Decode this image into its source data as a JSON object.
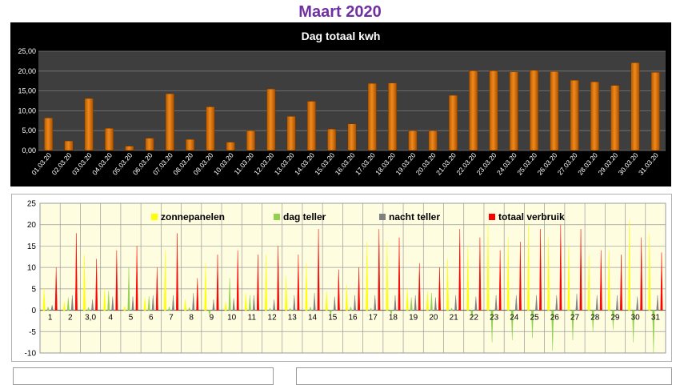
{
  "page": {
    "title": "Maart 2020"
  },
  "colors": {
    "title": "#7030a0",
    "bar": "#f0891c",
    "chart_bg": "#000000",
    "plot_bg": "#3e3e3e",
    "zonnepanelen": "#ffff00",
    "dag_teller": "#92d050",
    "nacht_teller": "#808080",
    "totaal_verbruik": "#ff0000",
    "plot2_bg": "#fffde0"
  },
  "chart_data": [
    {
      "type": "bar",
      "title": "Dag totaal kwh",
      "categories": [
        "01.03.20",
        "02.03.20",
        "03.03.20",
        "04.03.20",
        "05.03.20",
        "06.03.20",
        "07.03.20",
        "08.03.20",
        "09.03.20",
        "10.03.20",
        "11.03.20",
        "12.03.20",
        "13.03.20",
        "14.03.20",
        "15.03.20",
        "16.03.20",
        "17.03.20",
        "18.03.20",
        "19.03.20",
        "20.03.20",
        "21.03.20",
        "22.03.20",
        "23.03.20",
        "24.03.20",
        "25.03.20",
        "26.03.20",
        "27.03.20",
        "28.03.20",
        "29.03.20",
        "30.03.20",
        "31.03.20"
      ],
      "values": [
        8.2,
        2.4,
        13.1,
        5.6,
        1.1,
        3.1,
        14.3,
        2.8,
        11.0,
        2.1,
        5.0,
        15.5,
        8.6,
        12.4,
        5.4,
        6.7,
        16.9,
        17.0,
        5.0,
        5.0,
        13.9,
        20.1,
        20.1,
        19.8,
        20.2,
        19.9,
        17.7,
        17.3,
        16.4,
        22.1,
        19.7
      ],
      "xlabel": "",
      "ylabel": "",
      "ylim": [
        0,
        25
      ],
      "yticks": [
        "0,00",
        "5,00",
        "10,00",
        "15,00",
        "20,00",
        "25,00"
      ],
      "grid": true
    },
    {
      "type": "area",
      "title": "",
      "x": [
        "1",
        "2",
        "3,0",
        "4",
        "5",
        "6",
        "7",
        "8",
        "9",
        "10",
        "11",
        "12",
        "13",
        "14",
        "15",
        "16",
        "17",
        "18",
        "19",
        "20",
        "21",
        "22",
        "23",
        "24",
        "25",
        "26",
        "27",
        "28",
        "29",
        "30",
        "31"
      ],
      "ylim": [
        -10,
        25
      ],
      "yticks": [
        "-10",
        "-5",
        "0",
        "5",
        "10",
        "15",
        "20",
        "25"
      ],
      "legend_position": "top",
      "grid": true,
      "series": [
        {
          "name": "zonnepanelen",
          "values": [
            5,
            2,
            13,
            5,
            1,
            3,
            14,
            2.5,
            11,
            2,
            4,
            13,
            8,
            11,
            4.5,
            6,
            16,
            16,
            5,
            4.5,
            12,
            15,
            20,
            17,
            20,
            17,
            15,
            13,
            14,
            21,
            18
          ]
        },
        {
          "name": "dag teller",
          "values": [
            0.8,
            3,
            0.7,
            4.5,
            10,
            3.3,
            0.8,
            0.7,
            -1.2,
            7.5,
            3.5,
            0.5,
            0.5,
            0.8,
            -1.2,
            0.8,
            0.5,
            -1.2,
            3,
            4,
            0.5,
            -2,
            -7.5,
            -7,
            -6.5,
            -9.5,
            -7,
            -5,
            -4.5,
            -7.5,
            -10
          ]
        },
        {
          "name": "nacht teller",
          "values": [
            1.2,
            3.5,
            2.5,
            3.2,
            3.2,
            3.5,
            3.5,
            4,
            2.5,
            2.8,
            3.5,
            2.5,
            3.5,
            4,
            3.2,
            3.5,
            3.5,
            3.5,
            3.5,
            3,
            3.5,
            3.2,
            3.5,
            3.5,
            3.5,
            3.5,
            3.8,
            3.5,
            3.5,
            3.2,
            3.5
          ]
        },
        {
          "name": "totaal verbruik",
          "values": [
            10,
            18,
            12,
            14,
            15,
            10,
            18,
            7.5,
            13,
            14,
            13,
            15,
            13,
            19,
            9.5,
            10,
            19,
            17,
            11,
            10,
            19,
            17,
            14,
            16,
            19,
            20,
            19,
            14,
            13,
            17,
            13.5
          ]
        }
      ]
    }
  ]
}
